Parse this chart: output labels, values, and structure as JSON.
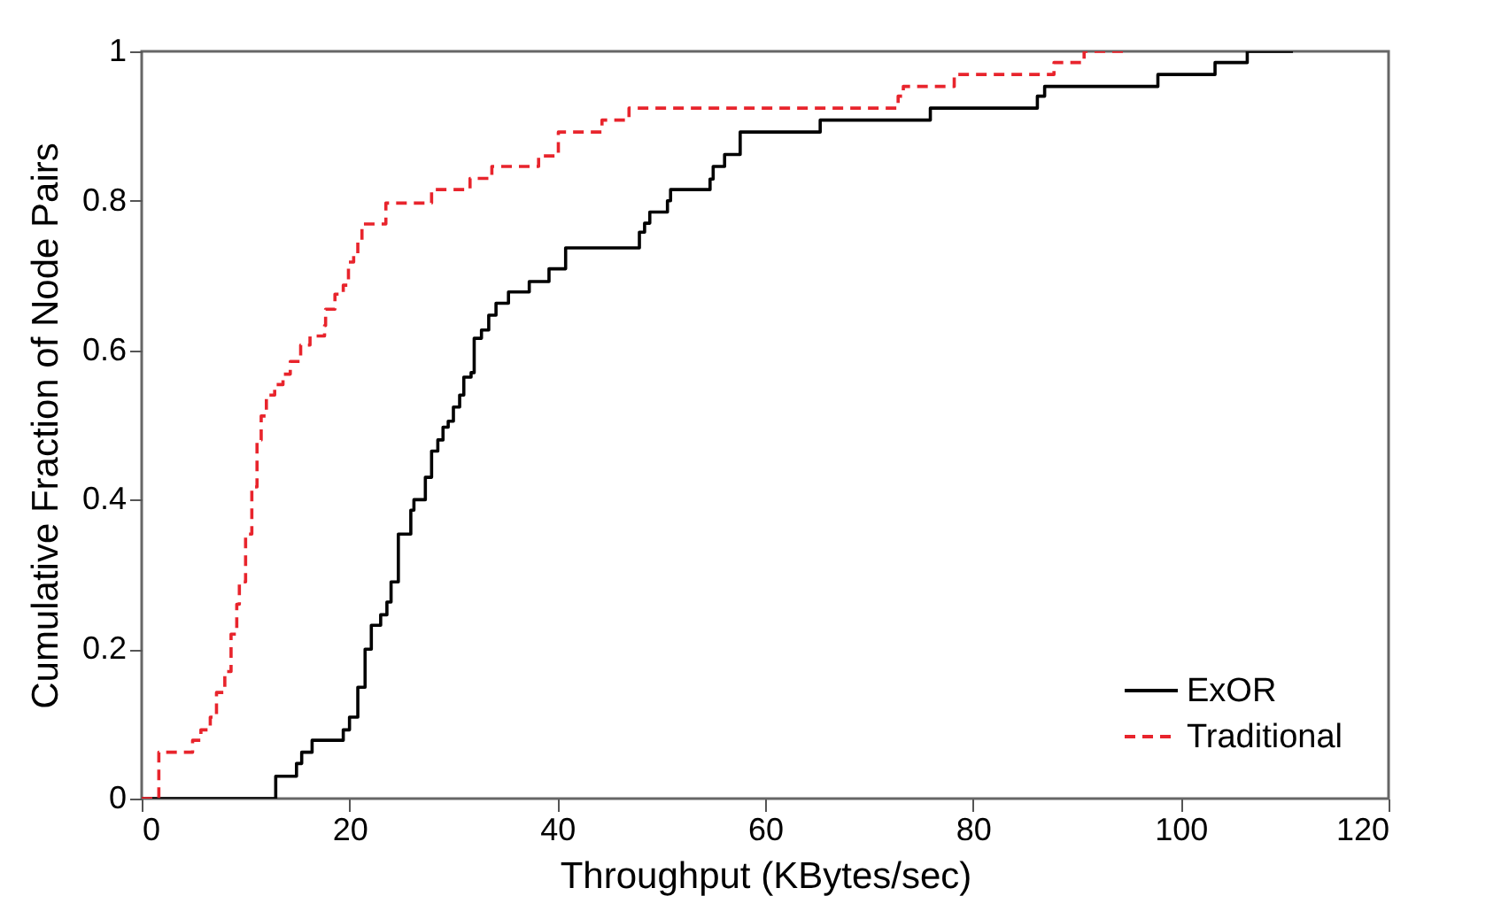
{
  "chart_data": {
    "type": "step",
    "xlabel": "Throughput (KBytes/sec)",
    "ylabel": "Cumulative Fraction of Node Pairs",
    "xlim": [
      0,
      120
    ],
    "xticks": [
      0,
      20,
      40,
      60,
      80,
      100,
      120
    ],
    "ylim": [
      0,
      1
    ],
    "yticks": [
      0,
      0.2,
      0.4,
      0.6,
      0.8,
      1
    ],
    "grid": false,
    "legend": "bottom right",
    "series": [
      {
        "name": "ExOR",
        "color": "#000000",
        "line_style": "solid",
        "x": [
          0,
          12.9,
          14.9,
          15.4,
          16.4,
          19.4,
          20.0,
          20.8,
          21.5,
          22.1,
          23.0,
          23.6,
          24.0,
          24.7,
          25.9,
          26.2,
          27.3,
          27.9,
          28.5,
          29.0,
          29.5,
          30.0,
          30.6,
          31.0,
          31.7,
          32.0,
          32.7,
          33.4,
          34.1,
          35.3,
          37.3,
          39.2,
          40.8,
          47.9,
          48.4,
          48.9,
          50.6,
          50.9,
          54.7,
          55.0,
          56.1,
          57.6,
          65.3,
          75.9,
          86.2,
          86.9,
          97.8,
          103.3,
          106.4,
          110.8
        ],
        "values": [
          0,
          0.03,
          0.047,
          0.062,
          0.078,
          0.092,
          0.109,
          0.149,
          0.2,
          0.232,
          0.246,
          0.263,
          0.29,
          0.354,
          0.386,
          0.4,
          0.43,
          0.465,
          0.48,
          0.497,
          0.505,
          0.524,
          0.54,
          0.564,
          0.57,
          0.616,
          0.627,
          0.647,
          0.663,
          0.678,
          0.692,
          0.709,
          0.737,
          0.758,
          0.77,
          0.785,
          0.8,
          0.815,
          0.829,
          0.846,
          0.862,
          0.892,
          0.908,
          0.924,
          0.94,
          0.953,
          0.969,
          0.985,
          1.0,
          1.0
        ]
      },
      {
        "name": "Traditional",
        "color": "#e8242c",
        "line_style": "dashed",
        "x": [
          0,
          1.65,
          4.9,
          5.7,
          6.6,
          7.2,
          8.0,
          8.6,
          9.15,
          9.4,
          10.0,
          10.6,
          11.1,
          11.5,
          12.0,
          12.8,
          13.6,
          14.3,
          15.3,
          16.2,
          17.6,
          17.7,
          18.6,
          19.4,
          19.9,
          20.4,
          20.8,
          21.2,
          23.5,
          27.9,
          31.6,
          33.7,
          38.2,
          40.1,
          44.3,
          46.9,
          72.8,
          73.3,
          78.2,
          87.8,
          90.7,
          95.0
        ],
        "values": [
          0,
          0.062,
          0.078,
          0.092,
          0.109,
          0.142,
          0.17,
          0.22,
          0.26,
          0.29,
          0.354,
          0.417,
          0.48,
          0.512,
          0.54,
          0.554,
          0.568,
          0.585,
          0.607,
          0.619,
          0.633,
          0.655,
          0.675,
          0.687,
          0.718,
          0.726,
          0.746,
          0.769,
          0.797,
          0.815,
          0.83,
          0.846,
          0.86,
          0.892,
          0.908,
          0.924,
          0.94,
          0.953,
          0.969,
          0.985,
          1.0,
          1.0
        ]
      }
    ]
  }
}
